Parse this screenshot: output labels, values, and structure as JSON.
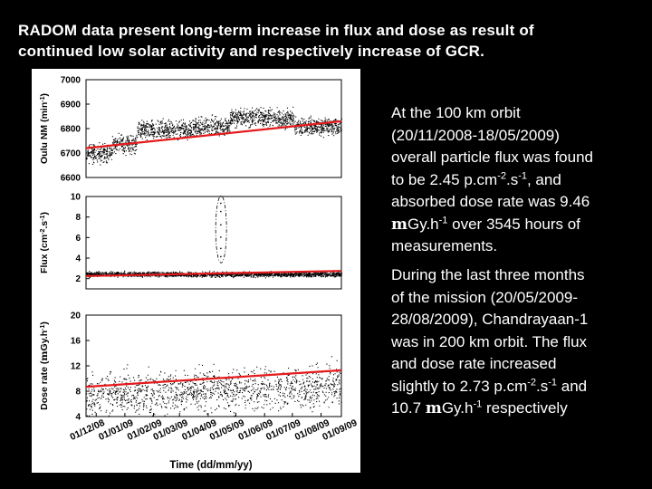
{
  "slide": {
    "title_line1": "RADOM data present long-term increase in flux and dose as result of",
    "title_line2": "continued low solar activity and respectively increase of GCR."
  },
  "paragraph1": {
    "p1": "At the 100 km orbit",
    "p2": "(20/11/2008-18/05/2009)",
    "p3": "overall particle flux was found",
    "p4a": "to be 2.45 p.cm",
    "p4b": "-2",
    "p4c": ".s",
    "p4d": "-1",
    "p4e": ", and",
    "p5": "absorbed dose rate was 9.46",
    "p6a": "m",
    "p6b": "Gy.h",
    "p6c": "-1",
    "p6d": " over 3545 hours of",
    "p7": "measurements."
  },
  "paragraph2": {
    "p1": "During the last three months",
    "p2": "of the mission (20/05/2009-",
    "p3": "28/08/2009), Chandrayaan-1",
    "p4": "was in 200 km orbit. The flux",
    "p5": "and dose rate increased",
    "p6a": "slightly to 2.73 p.cm",
    "p6b": "-2",
    "p6c": ".s",
    "p6d": "-1",
    "p6e": " and",
    "p7a": "10.7 ",
    "p7b": "m",
    "p7c": "Gy.h",
    "p7d": "-1",
    "p7e": " respectively"
  },
  "colors": {
    "background": "#000000",
    "trend": "#e41a1c",
    "points": "#000000",
    "panel": "#ffffff"
  },
  "chart_data": [
    {
      "type": "scatter",
      "name": "oulu",
      "ylabel": "Oulu NM (min-1)",
      "ylabel_main": "Oulu NM (min",
      "ylabel_sup": "-1",
      "ylabel_end": ")",
      "ylim": [
        6600,
        7000
      ],
      "yticks": [
        6600,
        6700,
        6800,
        6900,
        7000
      ],
      "trend": [
        6720,
        6830
      ],
      "segments": [
        {
          "from": 0,
          "to": 28,
          "center": 6700,
          "spread": 55
        },
        {
          "from": 28,
          "to": 55,
          "center": 6740,
          "spread": 55
        },
        {
          "from": 55,
          "to": 115,
          "center": 6795,
          "spread": 55
        },
        {
          "from": 115,
          "to": 155,
          "center": 6810,
          "spread": 55
        },
        {
          "from": 155,
          "to": 225,
          "center": 6845,
          "spread": 55
        },
        {
          "from": 225,
          "to": 276,
          "center": 6810,
          "spread": 50
        }
      ]
    },
    {
      "type": "scatter",
      "name": "flux",
      "ylabel": "Flux (cm-2.s-1)",
      "ylabel_main": "Flux (cm",
      "ylabel_sup": "-2",
      "ylabel_mid": ".s",
      "ylabel_sup2": "-1",
      "ylabel_end": ")",
      "ylim": [
        1,
        10
      ],
      "yticks": [
        2,
        4,
        6,
        8,
        10
      ],
      "trend": [
        2.25,
        2.75
      ],
      "segments": [
        {
          "from": 0,
          "to": 276,
          "center": 2.45,
          "spread": 0.35
        }
      ],
      "spikes": [
        4.2,
        5.0,
        6.1,
        7.3,
        8.6,
        9.4
      ],
      "spike_day": 145
    },
    {
      "type": "scatter",
      "name": "dose",
      "ylabel": "Dose rate (µGy.h-1)",
      "ylabel_main": "Dose rate (",
      "ylabel_mu": "m",
      "ylabel_rest": "Gy.h",
      "ylabel_sup": "-1",
      "ylabel_end": ")",
      "ylim": [
        4,
        20
      ],
      "yticks": [
        4,
        8,
        12,
        16,
        20
      ],
      "trend": [
        8.7,
        11.3
      ],
      "segments": [
        {
          "from": 0,
          "to": 276,
          "center": 10,
          "spread": 9
        }
      ]
    }
  ],
  "x_axis": {
    "xlabel": "Time (dd/mm/yy)",
    "xlim_days": [
      0,
      276
    ],
    "ticks": [
      {
        "label": "01/12/08",
        "day": 11
      },
      {
        "label": "01/01/09",
        "day": 42
      },
      {
        "label": "01/02/09",
        "day": 73
      },
      {
        "label": "01/03/09",
        "day": 101
      },
      {
        "label": "01/04/09",
        "day": 132
      },
      {
        "label": "01/05/09",
        "day": 162
      },
      {
        "label": "01/06/09",
        "day": 193
      },
      {
        "label": "01/07/09",
        "day": 223
      },
      {
        "label": "01/08/09",
        "day": 254
      },
      {
        "label": "01/09/09",
        "day": 285
      }
    ]
  }
}
